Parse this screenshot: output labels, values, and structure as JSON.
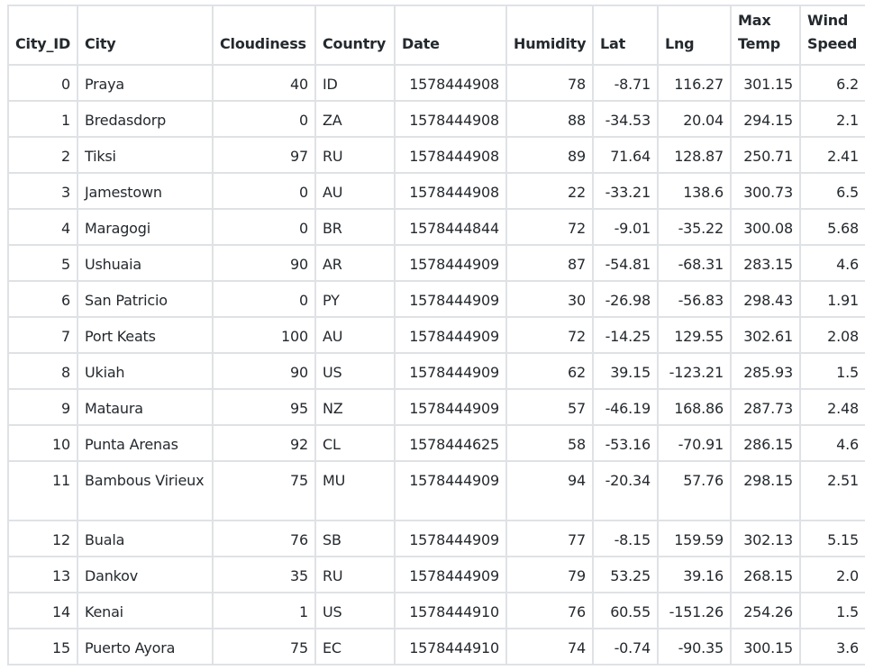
{
  "table": {
    "columns": [
      "City_ID",
      "City",
      "Cloudiness",
      "Country",
      "Date",
      "Humidity",
      "Lat",
      "Lng",
      "Max Temp",
      "Wind Speed"
    ],
    "rows": [
      [
        "0",
        "Praya",
        "40",
        "ID",
        "1578444908",
        "78",
        "-8.71",
        "116.27",
        "301.15",
        "6.2"
      ],
      [
        "1",
        "Bredasdorp",
        "0",
        "ZA",
        "1578444908",
        "88",
        "-34.53",
        "20.04",
        "294.15",
        "2.1"
      ],
      [
        "2",
        "Tiksi",
        "97",
        "RU",
        "1578444908",
        "89",
        "71.64",
        "128.87",
        "250.71",
        "2.41"
      ],
      [
        "3",
        "Jamestown",
        "0",
        "AU",
        "1578444908",
        "22",
        "-33.21",
        "138.6",
        "300.73",
        "6.5"
      ],
      [
        "4",
        "Maragogi",
        "0",
        "BR",
        "1578444844",
        "72",
        "-9.01",
        "-35.22",
        "300.08",
        "5.68"
      ],
      [
        "5",
        "Ushuaia",
        "90",
        "AR",
        "1578444909",
        "87",
        "-54.81",
        "-68.31",
        "283.15",
        "4.6"
      ],
      [
        "6",
        "San Patricio",
        "0",
        "PY",
        "1578444909",
        "30",
        "-26.98",
        "-56.83",
        "298.43",
        "1.91"
      ],
      [
        "7",
        "Port Keats",
        "100",
        "AU",
        "1578444909",
        "72",
        "-14.25",
        "129.55",
        "302.61",
        "2.08"
      ],
      [
        "8",
        "Ukiah",
        "90",
        "US",
        "1578444909",
        "62",
        "39.15",
        "-123.21",
        "285.93",
        "1.5"
      ],
      [
        "9",
        "Mataura",
        "95",
        "NZ",
        "1578444909",
        "57",
        "-46.19",
        "168.86",
        "287.73",
        "2.48"
      ],
      [
        "10",
        "Punta Arenas",
        "92",
        "CL",
        "1578444625",
        "58",
        "-53.16",
        "-70.91",
        "286.15",
        "4.6"
      ],
      [
        "11",
        "Bambous Virieux",
        "75",
        "MU",
        "1578444909",
        "94",
        "-20.34",
        "57.76",
        "298.15",
        "2.51"
      ],
      [
        "12",
        "Buala",
        "76",
        "SB",
        "1578444909",
        "77",
        "-8.15",
        "159.59",
        "302.13",
        "5.15"
      ],
      [
        "13",
        "Dankov",
        "35",
        "RU",
        "1578444909",
        "79",
        "53.25",
        "39.16",
        "268.15",
        "2.0"
      ],
      [
        "14",
        "Kenai",
        "1",
        "US",
        "1578444910",
        "76",
        "60.55",
        "-151.26",
        "254.26",
        "1.5"
      ],
      [
        "15",
        "Puerto Ayora",
        "75",
        "EC",
        "1578444910",
        "74",
        "-0.74",
        "-90.35",
        "300.15",
        "3.6"
      ]
    ]
  }
}
